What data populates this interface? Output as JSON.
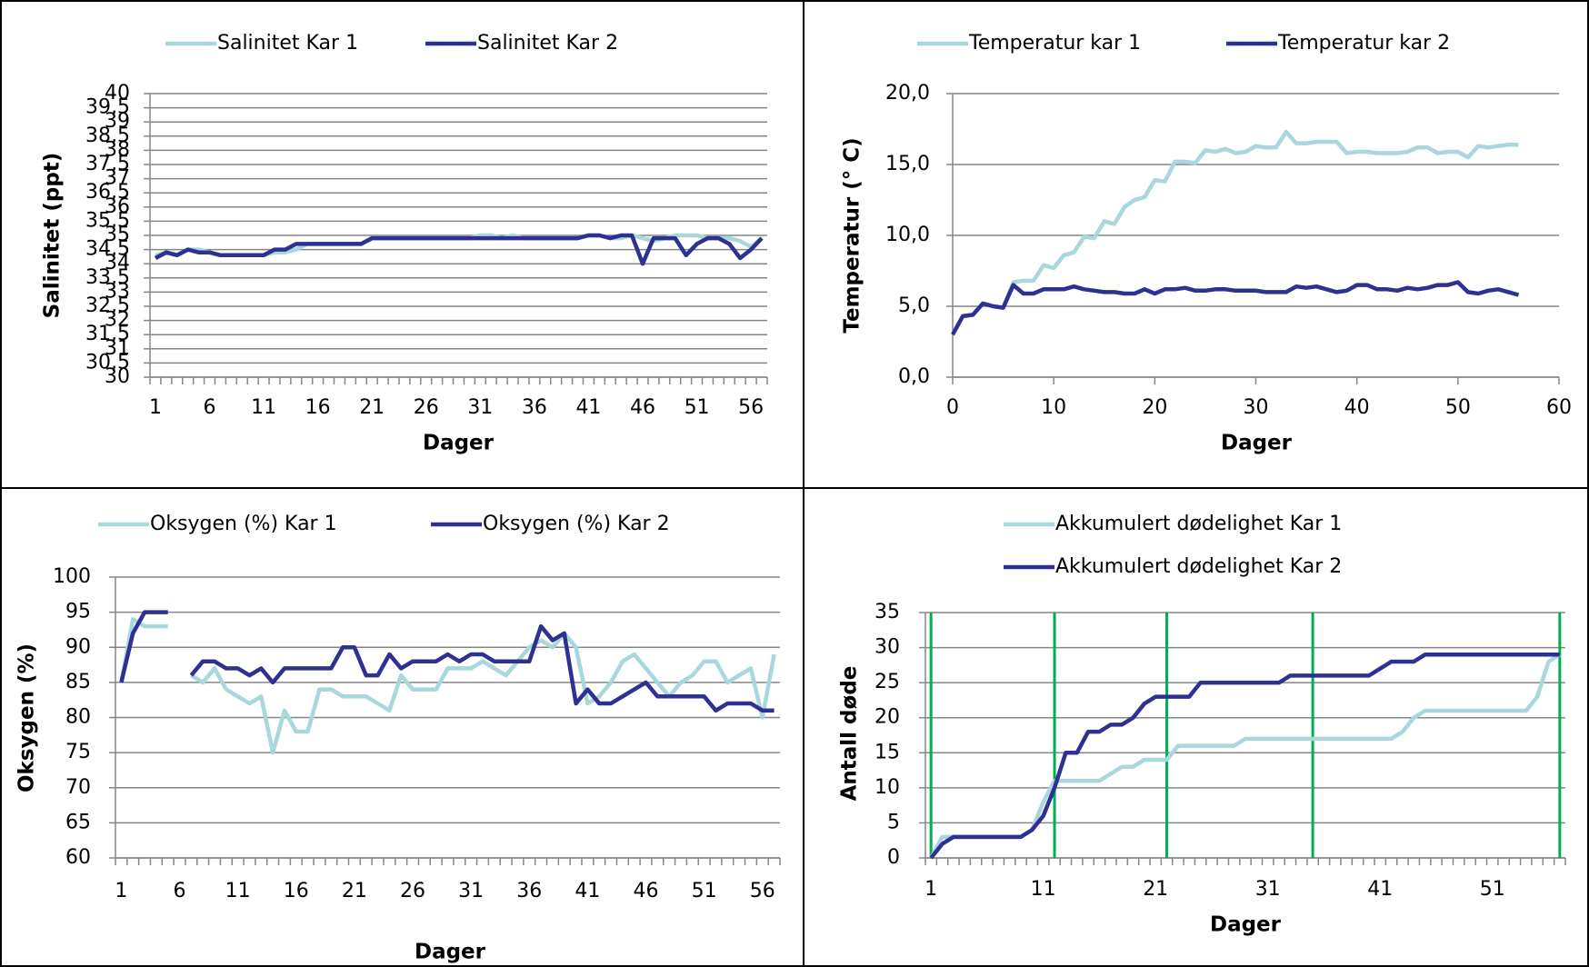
{
  "chart_data": [
    {
      "type": "line",
      "ylabel": "Salinitet (ppt)",
      "xlabel": "Dager",
      "categories": [
        "1",
        null,
        null,
        null,
        null,
        "6",
        null,
        null,
        null,
        null,
        "11",
        null,
        null,
        null,
        null,
        "16",
        null,
        null,
        null,
        null,
        "21",
        null,
        null,
        null,
        null,
        "26",
        null,
        null,
        null,
        null,
        "31",
        null,
        null,
        null,
        null,
        "36",
        null,
        null,
        null,
        null,
        "41",
        null,
        null,
        null,
        null,
        "46",
        null,
        null,
        null,
        null,
        "51",
        null,
        null,
        null,
        null,
        "56",
        null
      ],
      "ylim": [
        30,
        40
      ],
      "yticks": [
        30,
        {
          "value": 30.5,
          "label": "30,5"
        },
        31,
        {
          "value": 31.5,
          "label": "31,5"
        },
        32,
        {
          "value": 32.5,
          "label": "32,5"
        },
        33,
        {
          "value": 33.5,
          "label": "33,5"
        },
        34,
        {
          "value": 34.5,
          "label": "34,5"
        },
        35,
        {
          "value": 35.5,
          "label": "35,5"
        },
        36,
        {
          "value": 36.5,
          "label": "36,5"
        },
        37,
        {
          "value": 37.5,
          "label": "37,5"
        },
        38,
        {
          "value": 38.5,
          "label": "38,5"
        },
        39,
        {
          "value": 39.5,
          "label": "39,5"
        },
        40
      ],
      "grid": true,
      "series": [
        {
          "name": "Salinitet Kar 1",
          "color": "#a8d8dc",
          "values": [
            34.3,
            34.4,
            34.3,
            34.5,
            34.5,
            34.4,
            34.3,
            34.3,
            34.3,
            34.3,
            34.3,
            34.4,
            34.4,
            34.5,
            34.7,
            34.7,
            34.7,
            34.7,
            34.7,
            34.7,
            34.9,
            34.9,
            34.9,
            34.9,
            34.9,
            34.9,
            34.9,
            34.9,
            34.9,
            34.9,
            35,
            35,
            34.9,
            35,
            34.9,
            34.9,
            34.9,
            34.9,
            34.9,
            34.9,
            35,
            35,
            34.9,
            34.9,
            35,
            34.9,
            34.8,
            34.9,
            35,
            35,
            35,
            34.9,
            34.9,
            34.9,
            34.8,
            34.6,
            34.9
          ]
        },
        {
          "name": "Salinitet Kar 2",
          "color": "#2e3192",
          "values": [
            34.2,
            34.4,
            34.3,
            34.5,
            34.4,
            34.4,
            34.3,
            34.3,
            34.3,
            34.3,
            34.3,
            34.5,
            34.5,
            34.7,
            34.7,
            34.7,
            34.7,
            34.7,
            34.7,
            34.7,
            34.9,
            34.9,
            34.9,
            34.9,
            34.9,
            34.9,
            34.9,
            34.9,
            34.9,
            34.9,
            34.9,
            34.9,
            34.9,
            34.9,
            34.9,
            34.9,
            34.9,
            34.9,
            34.9,
            34.9,
            35,
            35,
            34.9,
            35,
            35,
            34,
            34.9,
            34.9,
            34.9,
            34.3,
            34.7,
            34.9,
            34.9,
            34.7,
            34.2,
            34.5,
            34.9
          ]
        }
      ]
    },
    {
      "type": "line",
      "ylabel": "Temperatur (° C)",
      "xlabel": "Dager",
      "x": [
        0,
        1,
        2,
        3,
        4,
        5,
        6,
        7,
        8,
        9,
        10,
        11,
        12,
        13,
        14,
        15,
        16,
        17,
        18,
        19,
        20,
        21,
        22,
        23,
        24,
        25,
        26,
        27,
        28,
        29,
        30,
        31,
        32,
        33,
        34,
        35,
        36,
        37,
        38,
        39,
        40,
        41,
        42,
        43,
        44,
        45,
        46,
        47,
        48,
        49,
        50,
        51,
        52,
        53,
        54,
        55,
        56
      ],
      "xlim": [
        0,
        60
      ],
      "xticks": [
        0,
        10,
        20,
        30,
        40,
        50,
        60
      ],
      "ylim": [
        0,
        20
      ],
      "yticks": [
        {
          "value": 0,
          "label": "0,0"
        },
        {
          "value": 5,
          "label": "5,0"
        },
        {
          "value": 10,
          "label": "10,0"
        },
        {
          "value": 15,
          "label": "15,0"
        },
        {
          "value": 20,
          "label": "20,0"
        }
      ],
      "grid": true,
      "series": [
        {
          "name": "Temperatur kar 1",
          "color": "#a8d8dc",
          "values": [
            3,
            4.3,
            4.4,
            5.2,
            5,
            4.9,
            6.7,
            6.8,
            6.8,
            7.9,
            7.7,
            8.6,
            8.8,
            9.9,
            9.8,
            11,
            10.8,
            12,
            12.5,
            12.7,
            13.9,
            13.8,
            15.2,
            15.2,
            15.1,
            16,
            15.9,
            16.1,
            15.8,
            15.9,
            16.3,
            16.2,
            16.2,
            17.3,
            16.5,
            16.5,
            16.6,
            16.6,
            16.6,
            15.8,
            15.9,
            15.9,
            15.8,
            15.8,
            15.8,
            15.9,
            16.2,
            16.2,
            15.8,
            15.9,
            15.9,
            15.5,
            16.3,
            16.2,
            16.3,
            16.4,
            16.4
          ]
        },
        {
          "name": "Temperatur kar 2",
          "color": "#2e3192",
          "values": [
            3,
            4.3,
            4.4,
            5.2,
            5,
            4.9,
            6.5,
            5.9,
            5.9,
            6.2,
            6.2,
            6.2,
            6.4,
            6.2,
            6.1,
            6.0,
            6.0,
            5.9,
            5.9,
            6.2,
            5.9,
            6.2,
            6.2,
            6.3,
            6.1,
            6.1,
            6.2,
            6.2,
            6.1,
            6.1,
            6.1,
            6.0,
            6.0,
            6.0,
            6.4,
            6.3,
            6.4,
            6.2,
            6.0,
            6.1,
            6.5,
            6.5,
            6.2,
            6.2,
            6.1,
            6.3,
            6.2,
            6.3,
            6.5,
            6.5,
            6.7,
            6.0,
            5.9,
            6.1,
            6.2,
            6.0,
            5.8
          ]
        }
      ]
    },
    {
      "type": "line",
      "ylabel": "Oksygen (%)",
      "xlabel": "Dager",
      "categories": [
        "1",
        null,
        null,
        null,
        null,
        "6",
        null,
        null,
        null,
        null,
        "11",
        null,
        null,
        null,
        null,
        "16",
        null,
        null,
        null,
        null,
        "21",
        null,
        null,
        null,
        null,
        "26",
        null,
        null,
        null,
        null,
        "31",
        null,
        null,
        null,
        null,
        "36",
        null,
        null,
        null,
        null,
        "41",
        null,
        null,
        null,
        null,
        "46",
        null,
        null,
        null,
        null,
        "51",
        null,
        null,
        null,
        null,
        "56",
        null
      ],
      "ylim": [
        60,
        100
      ],
      "yticks": [
        60,
        65,
        70,
        75,
        80,
        85,
        90,
        95,
        100
      ],
      "grid": true,
      "series": [
        {
          "name": "Oksygen (%) Kar 1",
          "color": "#a8d8dc",
          "values": [
            85,
            94,
            93,
            93,
            93,
            null,
            86,
            85,
            87,
            84,
            83,
            82,
            83,
            75,
            81,
            78,
            78,
            84,
            84,
            83,
            83,
            83,
            82,
            81,
            86,
            84,
            84,
            84,
            87,
            87,
            87,
            88,
            87,
            86,
            88,
            90,
            91,
            90,
            92,
            90,
            82,
            83,
            85,
            88,
            89,
            87,
            85,
            83,
            85,
            86,
            88,
            88,
            85,
            86,
            87,
            80,
            89
          ]
        },
        {
          "name": "Oksygen (%) Kar 2",
          "color": "#2e3192",
          "values": [
            85,
            92,
            95,
            95,
            95,
            null,
            86,
            88,
            88,
            87,
            87,
            86,
            87,
            85,
            87,
            87,
            87,
            87,
            87,
            90,
            90,
            86,
            86,
            89,
            87,
            88,
            88,
            88,
            89,
            88,
            89,
            89,
            88,
            88,
            88,
            88,
            93,
            91,
            92,
            82,
            84,
            82,
            82,
            83,
            84,
            85,
            83,
            83,
            83,
            83,
            83,
            81,
            82,
            82,
            82,
            81,
            81
          ]
        }
      ]
    },
    {
      "type": "line",
      "ylabel": "Antall døde",
      "xlabel": "Dager",
      "categories": [
        "1",
        null,
        null,
        null,
        null,
        null,
        null,
        null,
        null,
        null,
        "11",
        null,
        null,
        null,
        null,
        null,
        null,
        null,
        null,
        null,
        "21",
        null,
        null,
        null,
        null,
        null,
        null,
        null,
        null,
        null,
        "31",
        null,
        null,
        null,
        null,
        null,
        null,
        null,
        null,
        null,
        "41",
        null,
        null,
        null,
        null,
        null,
        null,
        null,
        null,
        null,
        "51",
        null,
        null,
        null,
        null,
        null,
        null
      ],
      "ylim": [
        0,
        35
      ],
      "yticks": [
        0,
        5,
        10,
        15,
        20,
        25,
        30,
        35
      ],
      "grid": true,
      "legend": "stacked",
      "vlines": {
        "color": "#00b050",
        "days": [
          1,
          12,
          22,
          35,
          57
        ]
      },
      "series": [
        {
          "name": "Akkumulert dødelighet Kar 1",
          "color": "#a8d8dc",
          "values": [
            0,
            3,
            3,
            3,
            3,
            3,
            3,
            3,
            3,
            4,
            8,
            11,
            11,
            11,
            11,
            11,
            12,
            13,
            13,
            14,
            14,
            14,
            16,
            16,
            16,
            16,
            16,
            16,
            17,
            17,
            17,
            17,
            17,
            17,
            17,
            17,
            17,
            17,
            17,
            17,
            17,
            17,
            18,
            20,
            21,
            21,
            21,
            21,
            21,
            21,
            21,
            21,
            21,
            21,
            23,
            28,
            29
          ]
        },
        {
          "name": "Akkumulert dødelighet Kar 2",
          "color": "#2e3192",
          "values": [
            0,
            2,
            3,
            3,
            3,
            3,
            3,
            3,
            3,
            4,
            6,
            10,
            15,
            15,
            18,
            18,
            19,
            19,
            20,
            22,
            23,
            23,
            23,
            23,
            25,
            25,
            25,
            25,
            25,
            25,
            25,
            25,
            26,
            26,
            26,
            26,
            26,
            26,
            26,
            26,
            27,
            28,
            28,
            28,
            29,
            29,
            29,
            29,
            29,
            29,
            29,
            29,
            29,
            29,
            29,
            29,
            29
          ]
        }
      ]
    }
  ]
}
